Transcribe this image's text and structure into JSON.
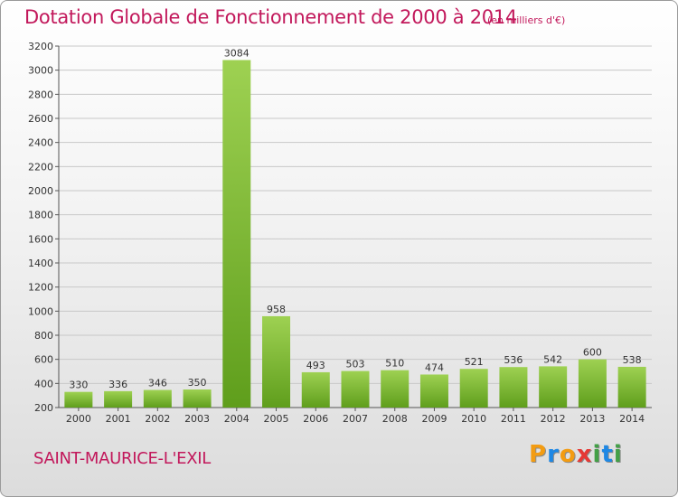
{
  "title": "Dotation Globale de Fonctionnement de 2000 à 2014",
  "subtitle": "(en milliers d'€)",
  "commune": "SAINT-MAURICE-L'EXIL",
  "logo": {
    "letters": [
      "P",
      "r",
      "o",
      "x",
      "i",
      "t",
      "i"
    ],
    "colors": [
      "#f39c12",
      "#1e88e5",
      "#f39c12",
      "#e53935",
      "#43a047",
      "#1e88e5",
      "#43a047"
    ]
  },
  "colors": {
    "bar_light": "#9ed152",
    "bar_dark": "#5f9e1c",
    "title": "#c2185b"
  },
  "chart_data": {
    "type": "bar",
    "categories": [
      "2000",
      "2001",
      "2002",
      "2003",
      "2004",
      "2005",
      "2006",
      "2007",
      "2008",
      "2009",
      "2010",
      "2011",
      "2012",
      "2013",
      "2014"
    ],
    "values": [
      330,
      336,
      346,
      350,
      3084,
      958,
      493,
      503,
      510,
      474,
      521,
      536,
      542,
      600,
      538
    ],
    "ylim": [
      200,
      3200
    ],
    "yticks": [
      200,
      400,
      600,
      800,
      1000,
      1200,
      1400,
      1600,
      1800,
      2000,
      2200,
      2400,
      2600,
      2800,
      3000,
      3200
    ],
    "grid": true
  }
}
